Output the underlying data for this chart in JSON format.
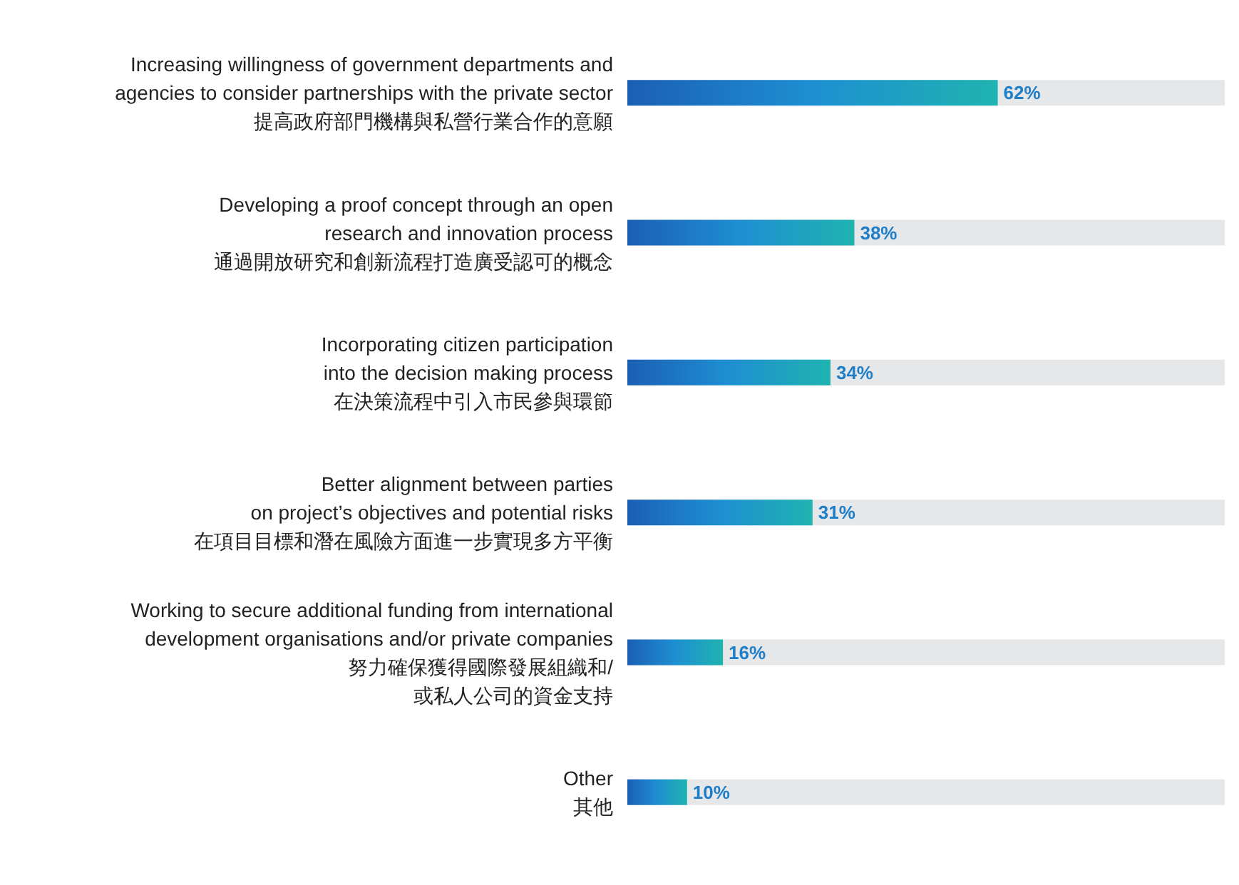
{
  "chart_data": {
    "type": "bar",
    "orientation": "horizontal",
    "categories": [
      "Increasing willingness of government departments and\nagencies to consider partnerships with the private sector\n提高政府部門機構與私營行業合作的意願",
      "Developing a proof concept through an open\nresearch and innovation process\n通過開放研究和創新流程打造廣受認可的概念",
      "Incorporating citizen participation\ninto the decision making process\n在決策流程中引入市民參與環節",
      "Better alignment between parties\non project’s objectives and potential risks\n在項目目標和潛在風險方面進一步實現多方平衡",
      "Working to secure additional funding from international\ndevelopment organisations and/or private companies\n努力確保獲得國際發展組織和/\n或私人公司的資金支持",
      "Other\n其他"
    ],
    "values": [
      62,
      38,
      34,
      31,
      16,
      10
    ],
    "value_labels": [
      "62%",
      "38%",
      "34%",
      "31%",
      "16%",
      "10%"
    ],
    "color": "#1e8fd2",
    "xlim": [
      0,
      100
    ],
    "tick_labels": "y"
  }
}
